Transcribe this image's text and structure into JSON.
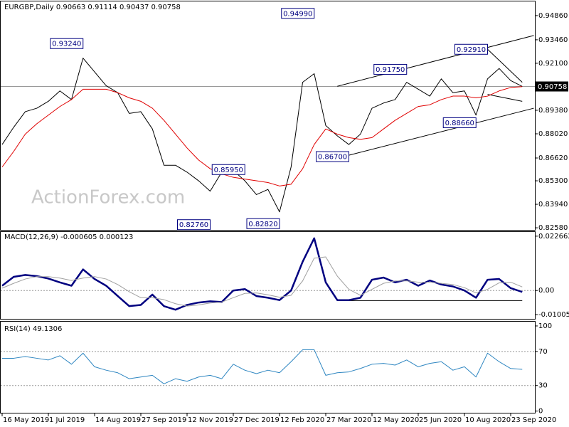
{
  "chart_data": [
    {
      "type": "line",
      "title": "EURGBP,Daily  0.90663 0.91114 0.90437 0.90758",
      "watermark": "ActionForex.com",
      "ylim": [
        0.8246,
        0.9568
      ],
      "yticks": [
        {
          "value": 0.9486,
          "label": "0.94860"
        },
        {
          "value": 0.9346,
          "label": "0.93460"
        },
        {
          "value": 0.921,
          "label": "0.92100"
        },
        {
          "value": 0.8938,
          "label": "0.89380"
        },
        {
          "value": 0.8802,
          "label": "0.88020"
        },
        {
          "value": 0.8662,
          "label": "0.86620"
        },
        {
          "value": 0.853,
          "label": "0.85300"
        },
        {
          "value": 0.8394,
          "label": "0.83940"
        },
        {
          "value": 0.8258,
          "label": "0.82580"
        }
      ],
      "last_price": {
        "value": 0.90758,
        "label": "0.90758"
      },
      "series": [
        {
          "name": "Close",
          "color": "#000000",
          "values": [
            0.874,
            0.884,
            0.893,
            0.895,
            0.899,
            0.905,
            0.9,
            0.924,
            0.916,
            0.908,
            0.904,
            0.892,
            0.893,
            0.883,
            0.862,
            0.862,
            0.858,
            0.853,
            0.847,
            0.858,
            0.859,
            0.853,
            0.845,
            0.848,
            0.835,
            0.861,
            0.91,
            0.915,
            0.885,
            0.879,
            0.874,
            0.88,
            0.895,
            0.898,
            0.9,
            0.91,
            0.906,
            0.902,
            0.912,
            0.904,
            0.905,
            0.891,
            0.912,
            0.918,
            0.911,
            0.9076
          ]
        },
        {
          "name": "MA",
          "color": "#e00000",
          "values": [
            0.861,
            0.87,
            0.88,
            0.886,
            0.891,
            0.896,
            0.9,
            0.906,
            0.906,
            0.906,
            0.904,
            0.901,
            0.899,
            0.895,
            0.888,
            0.88,
            0.872,
            0.865,
            0.86,
            0.857,
            0.855,
            0.854,
            0.853,
            0.852,
            0.85,
            0.851,
            0.86,
            0.874,
            0.883,
            0.88,
            0.878,
            0.877,
            0.878,
            0.883,
            0.888,
            0.892,
            0.896,
            0.897,
            0.9,
            0.902,
            0.902,
            0.901,
            0.902,
            0.905,
            0.907,
            0.9075
          ]
        }
      ],
      "annotations": [
        {
          "label": "0.93240",
          "value": 0.9324,
          "index": 7
        },
        {
          "label": "0.94990",
          "value": 0.9499,
          "index": 27
        },
        {
          "label": "0.91750",
          "value": 0.9175,
          "index": 35
        },
        {
          "label": "0.92910",
          "value": 0.9291,
          "index": 42
        },
        {
          "label": "0.85950",
          "value": 0.8595,
          "index": 21
        },
        {
          "label": "0.86700",
          "value": 0.867,
          "index": 30
        },
        {
          "label": "0.88660",
          "value": 0.8866,
          "index": 41
        },
        {
          "label": "0.82760",
          "value": 0.8276,
          "index": 18
        },
        {
          "label": "0.82820",
          "value": 0.8282,
          "index": 24
        }
      ],
      "trendlines": [
        {
          "points": [
            [
              29,
              0.9077
            ],
            [
              46,
              0.9371
            ]
          ]
        },
        {
          "points": [
            [
              30,
              0.8678
            ],
            [
              46,
              0.895
            ]
          ]
        },
        {
          "points": [
            [
              42,
              0.9291
            ],
            [
              45,
              0.91
            ]
          ]
        },
        {
          "points": [
            [
              42,
              0.903
            ],
            [
              45,
              0.899
            ]
          ]
        }
      ]
    },
    {
      "type": "line",
      "title": "MACD(12,26,9) -0.000605 0.000123",
      "ylim": [
        -0.0118,
        0.0244
      ],
      "yticks": [
        0.022662,
        {
          "value": 0,
          "label": "0.00"
        },
        -0.010052
      ],
      "hlines": [
        0
      ],
      "series": [
        {
          "name": "MACD",
          "color": "#000080",
          "width": 2.5,
          "values": [
            0.002,
            0.0057,
            0.0065,
            0.006,
            0.005,
            0.0034,
            0.002,
            0.0088,
            0.0048,
            0.002,
            -0.0023,
            -0.0065,
            -0.006,
            -0.0017,
            -0.0065,
            -0.008,
            -0.006,
            -0.005,
            -0.0045,
            -0.0048,
            0,
            0.0006,
            -0.0023,
            -0.003,
            -0.004,
            0,
            0.012,
            0.0218,
            0.0034,
            -0.004,
            -0.004,
            -0.003,
            0.0045,
            0.0054,
            0.0034,
            0.0045,
            0.002,
            0.0042,
            0.0025,
            0.0017,
            0,
            -0.003,
            0.0045,
            0.0048,
            0.001,
            -0.0006
          ]
        },
        {
          "name": "Signal",
          "color": "#a0a0a0",
          "width": 1,
          "values": [
            0.001,
            0.003,
            0.0048,
            0.0058,
            0.0058,
            0.0052,
            0.0042,
            0.0052,
            0.0058,
            0.0048,
            0.0025,
            -0.0005,
            -0.003,
            -0.003,
            -0.0038,
            -0.0055,
            -0.0065,
            -0.006,
            -0.0052,
            -0.0048,
            -0.003,
            -0.0012,
            -0.001,
            -0.0018,
            -0.0028,
            -0.002,
            0.004,
            0.0135,
            0.014,
            0.006,
            0.0005,
            -0.002,
            0.0005,
            0.003,
            0.004,
            0.004,
            0.0035,
            0.0035,
            0.003,
            0.0025,
            0.0012,
            -0.001,
            0.0005,
            0.0032,
            0.0035,
            0.0015
          ]
        }
      ],
      "trendlines": [
        {
          "points": [
            [
              29,
              -0.0042
            ],
            [
              45,
              -0.0042
            ]
          ]
        }
      ]
    },
    {
      "type": "line",
      "title": "RSI(14) 49.1306",
      "ylim": [
        -2,
        105
      ],
      "yticks": [
        100,
        70,
        30,
        0
      ],
      "hlines": [
        70,
        30
      ],
      "categories": [
        "16 May 2019",
        null,
        null,
        null,
        "1 Jul 2019",
        null,
        null,
        null,
        "14 Aug 2019",
        null,
        null,
        null,
        "27 Sep 2019",
        null,
        null,
        null,
        "12 Nov 2019",
        null,
        null,
        null,
        "27 Dec 2019",
        null,
        null,
        null,
        "12 Feb 2020",
        null,
        null,
        null,
        "27 Mar 2020",
        null,
        null,
        null,
        "12 May 2020",
        null,
        null,
        null,
        "25 Jun 2020",
        null,
        null,
        null,
        "10 Aug 2020",
        null,
        null,
        null,
        "23 Sep 2020",
        null
      ],
      "series": [
        {
          "name": "RSI",
          "color": "#2e86c1",
          "width": 1,
          "values": [
            62,
            62,
            64,
            62,
            60,
            65,
            55,
            68,
            52,
            48,
            45,
            38,
            40,
            42,
            32,
            38,
            35,
            40,
            42,
            38,
            55,
            48,
            44,
            48,
            45,
            58,
            72,
            72,
            42,
            45,
            46,
            50,
            55,
            56,
            54,
            60,
            52,
            56,
            58,
            48,
            52,
            40,
            68,
            58,
            50,
            49
          ]
        }
      ]
    }
  ]
}
